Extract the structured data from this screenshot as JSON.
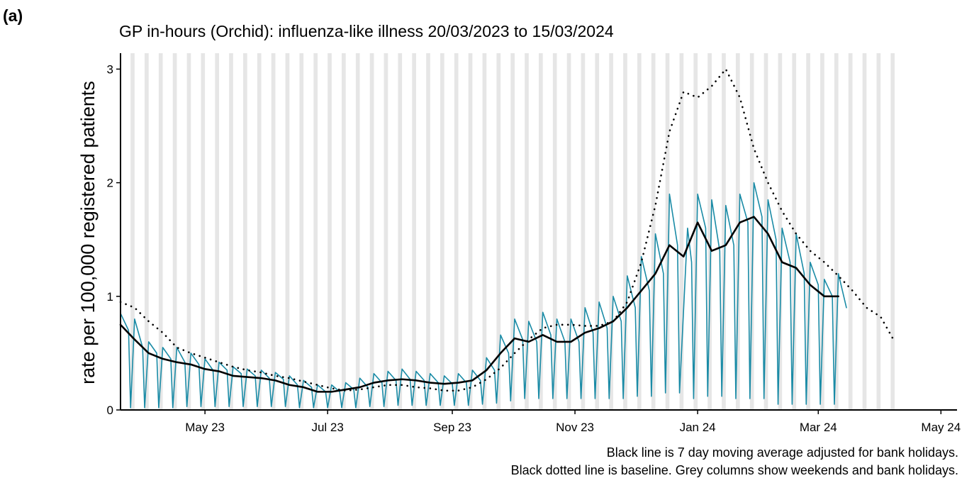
{
  "panel_label": "(a)",
  "chart_data": {
    "type": "line",
    "title": "GP in-hours (Orchid): influenza-like illness 20/03/2023 to 15/03/2024",
    "y_label": "rate per 100,000 registered patients",
    "notes": [
      "Black line is 7 day moving average adjusted for bank holidays.",
      "Black dotted line is baseline. Grey columns show weekends and bank holidays."
    ],
    "xlim": [
      "2023-03-20",
      "2024-05-09"
    ],
    "xticks": [
      {
        "value": "2023-05-01",
        "label": "May 23"
      },
      {
        "value": "2023-07-01",
        "label": "Jul 23"
      },
      {
        "value": "2023-09-01",
        "label": "Sep 23"
      },
      {
        "value": "2023-11-01",
        "label": "Nov 23"
      },
      {
        "value": "2024-01-01",
        "label": "Jan 24"
      },
      {
        "value": "2024-03-01",
        "label": "Mar 24"
      },
      {
        "value": "2024-05-01",
        "label": "May 24"
      }
    ],
    "ylim": [
      0,
      3.14
    ],
    "yticks": [
      0,
      1,
      2,
      3
    ],
    "weekend_shading": true,
    "shade_color": "#e6e6e6",
    "series": [
      {
        "color": "#1a8ba6",
        "style": "solid",
        "width": 1.6,
        "x": [
          "2023-03-20",
          "2023-03-24",
          "2023-03-25",
          "2023-03-27",
          "2023-03-31",
          "2023-04-01",
          "2023-04-03",
          "2023-04-07",
          "2023-04-08",
          "2023-04-10",
          "2023-04-14",
          "2023-04-15",
          "2023-04-17",
          "2023-04-21",
          "2023-04-22",
          "2023-04-24",
          "2023-04-28",
          "2023-04-29",
          "2023-05-01",
          "2023-05-05",
          "2023-05-06",
          "2023-05-08",
          "2023-05-12",
          "2023-05-13",
          "2023-05-15",
          "2023-05-19",
          "2023-05-20",
          "2023-05-22",
          "2023-05-26",
          "2023-05-27",
          "2023-05-29",
          "2023-06-02",
          "2023-06-03",
          "2023-06-05",
          "2023-06-09",
          "2023-06-10",
          "2023-06-12",
          "2023-06-16",
          "2023-06-17",
          "2023-06-19",
          "2023-06-23",
          "2023-06-24",
          "2023-06-26",
          "2023-06-30",
          "2023-07-01",
          "2023-07-03",
          "2023-07-07",
          "2023-07-08",
          "2023-07-10",
          "2023-07-14",
          "2023-07-15",
          "2023-07-17",
          "2023-07-21",
          "2023-07-22",
          "2023-07-24",
          "2023-07-28",
          "2023-07-29",
          "2023-07-31",
          "2023-08-04",
          "2023-08-05",
          "2023-08-07",
          "2023-08-11",
          "2023-08-12",
          "2023-08-14",
          "2023-08-18",
          "2023-08-19",
          "2023-08-21",
          "2023-08-25",
          "2023-08-26",
          "2023-08-28",
          "2023-09-01",
          "2023-09-02",
          "2023-09-04",
          "2023-09-08",
          "2023-09-09",
          "2023-09-11",
          "2023-09-15",
          "2023-09-16",
          "2023-09-18",
          "2023-09-22",
          "2023-09-23",
          "2023-09-25",
          "2023-09-29",
          "2023-09-30",
          "2023-10-02",
          "2023-10-06",
          "2023-10-07",
          "2023-10-09",
          "2023-10-13",
          "2023-10-14",
          "2023-10-16",
          "2023-10-20",
          "2023-10-21",
          "2023-10-23",
          "2023-10-27",
          "2023-10-28",
          "2023-10-30",
          "2023-11-03",
          "2023-11-04",
          "2023-11-06",
          "2023-11-10",
          "2023-11-11",
          "2023-11-13",
          "2023-11-17",
          "2023-11-18",
          "2023-11-20",
          "2023-11-24",
          "2023-11-25",
          "2023-11-27",
          "2023-12-01",
          "2023-12-02",
          "2023-12-04",
          "2023-12-08",
          "2023-12-09",
          "2023-12-11",
          "2023-12-15",
          "2023-12-16",
          "2023-12-18",
          "2023-12-22",
          "2023-12-23",
          "2023-12-27",
          "2023-12-29",
          "2023-12-30",
          "2024-01-01",
          "2024-01-05",
          "2024-01-06",
          "2024-01-08",
          "2024-01-12",
          "2024-01-13",
          "2024-01-15",
          "2024-01-19",
          "2024-01-20",
          "2024-01-22",
          "2024-01-26",
          "2024-01-27",
          "2024-01-29",
          "2024-02-02",
          "2024-02-03",
          "2024-02-05",
          "2024-02-09",
          "2024-02-10",
          "2024-02-12",
          "2024-02-16",
          "2024-02-17",
          "2024-02-19",
          "2024-02-23",
          "2024-02-24",
          "2024-02-26",
          "2024-03-01",
          "2024-03-02",
          "2024-03-04",
          "2024-03-08",
          "2024-03-09",
          "2024-03-11",
          "2024-03-15"
        ],
        "values": [
          0.85,
          0.7,
          0.02,
          0.8,
          0.55,
          0.02,
          0.6,
          0.5,
          0.02,
          0.55,
          0.45,
          0.02,
          0.55,
          0.42,
          0.03,
          0.5,
          0.4,
          0.03,
          0.45,
          0.35,
          0.03,
          0.42,
          0.35,
          0.03,
          0.38,
          0.32,
          0.03,
          0.36,
          0.3,
          0.03,
          0.35,
          0.28,
          0.03,
          0.33,
          0.27,
          0.03,
          0.3,
          0.22,
          0.02,
          0.26,
          0.2,
          0.02,
          0.22,
          0.16,
          0.02,
          0.22,
          0.16,
          0.02,
          0.24,
          0.18,
          0.02,
          0.28,
          0.2,
          0.03,
          0.32,
          0.24,
          0.03,
          0.34,
          0.26,
          0.04,
          0.36,
          0.27,
          0.04,
          0.34,
          0.26,
          0.04,
          0.32,
          0.24,
          0.04,
          0.3,
          0.23,
          0.04,
          0.32,
          0.24,
          0.04,
          0.35,
          0.26,
          0.05,
          0.46,
          0.35,
          0.06,
          0.66,
          0.5,
          0.08,
          0.8,
          0.62,
          0.1,
          0.78,
          0.6,
          0.1,
          0.86,
          0.66,
          0.1,
          0.8,
          0.6,
          0.1,
          0.8,
          0.6,
          0.1,
          0.9,
          0.68,
          0.1,
          0.95,
          0.72,
          0.1,
          1.0,
          0.78,
          0.1,
          1.18,
          0.9,
          0.12,
          1.35,
          1.05,
          0.12,
          1.55,
          1.2,
          0.15,
          1.9,
          1.45,
          0.15,
          1.6,
          1.3,
          0.1,
          1.9,
          1.6,
          0.12,
          1.85,
          1.4,
          0.12,
          1.8,
          1.45,
          0.1,
          1.9,
          1.65,
          0.1,
          2.0,
          1.7,
          0.1,
          1.85,
          1.5,
          0.05,
          1.6,
          1.3,
          0.05,
          1.55,
          1.2,
          0.05,
          1.3,
          1.1,
          0.05,
          1.15,
          1.0,
          0.05,
          1.2,
          0.9
        ]
      },
      {
        "color": "#000000",
        "style": "solid",
        "width": 2.6,
        "x": [
          "2023-03-20",
          "2023-03-27",
          "2023-04-03",
          "2023-04-10",
          "2023-04-17",
          "2023-04-24",
          "2023-05-01",
          "2023-05-08",
          "2023-05-15",
          "2023-05-22",
          "2023-05-29",
          "2023-06-05",
          "2023-06-12",
          "2023-06-19",
          "2023-06-26",
          "2023-07-03",
          "2023-07-10",
          "2023-07-17",
          "2023-07-24",
          "2023-07-31",
          "2023-08-07",
          "2023-08-14",
          "2023-08-21",
          "2023-08-28",
          "2023-09-04",
          "2023-09-11",
          "2023-09-18",
          "2023-09-25",
          "2023-10-02",
          "2023-10-09",
          "2023-10-16",
          "2023-10-23",
          "2023-10-30",
          "2023-11-06",
          "2023-11-13",
          "2023-11-20",
          "2023-11-27",
          "2023-12-04",
          "2023-12-11",
          "2023-12-18",
          "2023-12-25",
          "2024-01-01",
          "2024-01-08",
          "2024-01-15",
          "2024-01-22",
          "2024-01-29",
          "2024-02-05",
          "2024-02-12",
          "2024-02-19",
          "2024-02-26",
          "2024-03-04",
          "2024-03-11"
        ],
        "values": [
          0.75,
          0.62,
          0.5,
          0.45,
          0.42,
          0.4,
          0.36,
          0.34,
          0.3,
          0.29,
          0.28,
          0.26,
          0.22,
          0.2,
          0.16,
          0.16,
          0.18,
          0.2,
          0.24,
          0.26,
          0.27,
          0.26,
          0.24,
          0.23,
          0.24,
          0.26,
          0.35,
          0.5,
          0.63,
          0.6,
          0.66,
          0.6,
          0.6,
          0.68,
          0.72,
          0.78,
          0.9,
          1.05,
          1.2,
          1.45,
          1.35,
          1.65,
          1.4,
          1.45,
          1.65,
          1.7,
          1.55,
          1.3,
          1.25,
          1.1,
          1.0,
          1.0
        ]
      },
      {
        "color": "#000000",
        "style": "dotted",
        "width": 2.6,
        "x": [
          "2023-03-20",
          "2023-03-27",
          "2023-04-03",
          "2023-04-10",
          "2023-04-17",
          "2023-04-24",
          "2023-05-01",
          "2023-05-08",
          "2023-05-15",
          "2023-05-22",
          "2023-05-29",
          "2023-06-05",
          "2023-06-12",
          "2023-06-19",
          "2023-06-26",
          "2023-07-03",
          "2023-07-10",
          "2023-07-17",
          "2023-07-24",
          "2023-07-31",
          "2023-08-07",
          "2023-08-14",
          "2023-08-21",
          "2023-08-28",
          "2023-09-04",
          "2023-09-11",
          "2023-09-18",
          "2023-09-25",
          "2023-10-02",
          "2023-10-09",
          "2023-10-16",
          "2023-10-23",
          "2023-10-30",
          "2023-11-06",
          "2023-11-13",
          "2023-11-20",
          "2023-11-27",
          "2023-12-04",
          "2023-12-11",
          "2023-12-18",
          "2023-12-25",
          "2024-01-01",
          "2024-01-08",
          "2024-01-15",
          "2024-01-22",
          "2024-01-29",
          "2024-02-05",
          "2024-02-12",
          "2024-02-19",
          "2024-02-26",
          "2024-03-04",
          "2024-03-11",
          "2024-03-18",
          "2024-03-25",
          "2024-04-01",
          "2024-04-08"
        ],
        "values": [
          0.95,
          0.9,
          0.78,
          0.68,
          0.55,
          0.5,
          0.46,
          0.42,
          0.38,
          0.35,
          0.33,
          0.3,
          0.28,
          0.25,
          0.22,
          0.19,
          0.17,
          0.18,
          0.2,
          0.22,
          0.22,
          0.2,
          0.19,
          0.17,
          0.17,
          0.2,
          0.27,
          0.37,
          0.5,
          0.62,
          0.72,
          0.75,
          0.75,
          0.74,
          0.74,
          0.78,
          0.95,
          1.3,
          1.8,
          2.45,
          2.8,
          2.75,
          2.85,
          3.0,
          2.75,
          2.3,
          2.0,
          1.75,
          1.55,
          1.4,
          1.3,
          1.18,
          1.05,
          0.9,
          0.82,
          0.6
        ]
      }
    ]
  }
}
